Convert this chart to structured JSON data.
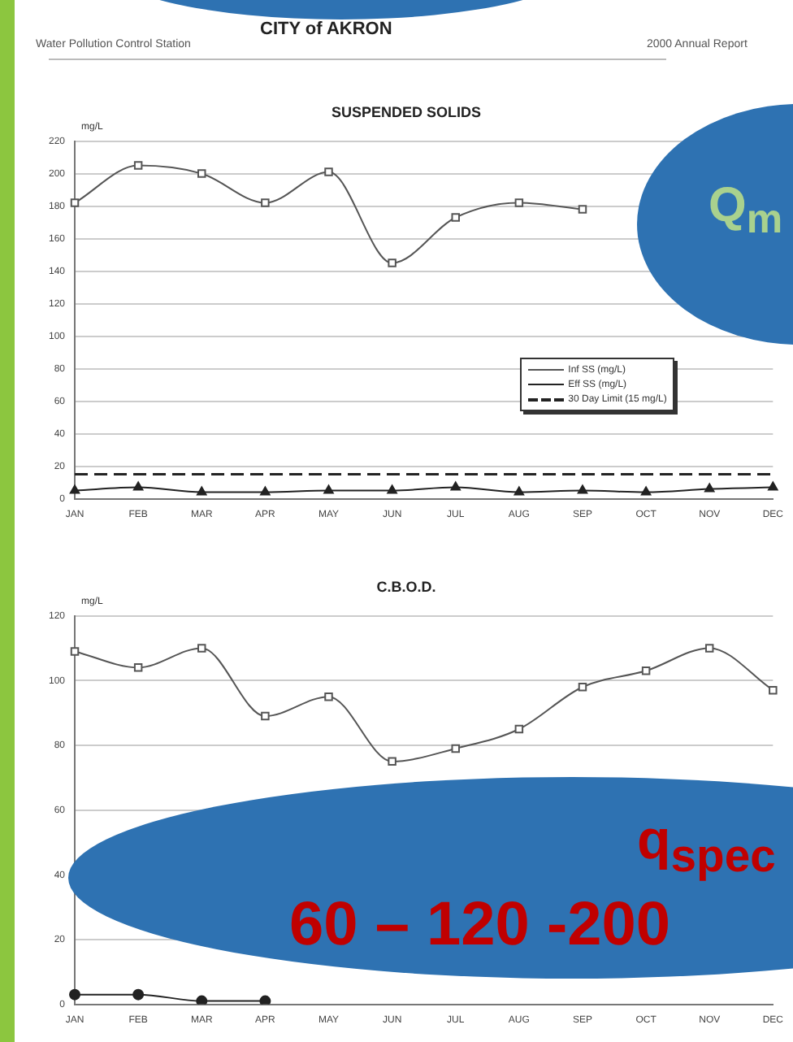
{
  "chart_data": [
    {
      "type": "line",
      "title": "SUSPENDED SOLIDS",
      "ylabel": "mg/L",
      "categories": [
        "JAN",
        "FEB",
        "MAR",
        "APR",
        "MAY",
        "JUN",
        "JUL",
        "AUG",
        "SEP",
        "OCT",
        "NOV",
        "DEC"
      ],
      "series": [
        {
          "name": "Inf SS (mg/L)",
          "color": "#555555",
          "marker": "square",
          "values": [
            182,
            205,
            200,
            182,
            201,
            145,
            173,
            182,
            178,
            null,
            null,
            null
          ]
        },
        {
          "name": "Eff SS (mg/L)",
          "color": "#222222",
          "marker": "triangle",
          "values": [
            5,
            7,
            4,
            4,
            5,
            5,
            7,
            4,
            5,
            4,
            6,
            7
          ]
        }
      ],
      "ref_lines": [
        {
          "axis": "y",
          "value": 15,
          "label": "30 Day Limit (15 mg/L)",
          "color": "#222222",
          "line_style": "dashed"
        }
      ],
      "ylim": [
        0,
        220
      ],
      "yticks": [
        0,
        20,
        40,
        60,
        80,
        100,
        120,
        140,
        160,
        180,
        200,
        220
      ],
      "grid": "y",
      "legend": "right",
      "annotations": [
        "Water Pollution Control Station",
        "CITY of AKRON",
        "2000 Annual Report",
        "Q$_{m}$"
      ]
    },
    {
      "type": "line",
      "title": "C.B.O.D.",
      "ylabel": "mg/L",
      "categories": [
        "JAN",
        "FEB",
        "MAR",
        "APR",
        "MAY",
        "JUN",
        "JUL",
        "AUG",
        "SEP",
        "OCT",
        "NOV",
        "DEC"
      ],
      "series": [
        {
          "color": "#555555",
          "marker": "square",
          "values": [
            109,
            104,
            110,
            89,
            95,
            75,
            79,
            85,
            98,
            103,
            110,
            97
          ]
        },
        {
          "color": "#222222",
          "marker": "circle",
          "values": [
            3,
            3,
            1,
            1,
            null,
            null,
            null,
            null,
            null,
            null,
            null,
            null
          ]
        }
      ],
      "ylim": [
        0,
        120
      ],
      "yticks": [
        0,
        20,
        40,
        60,
        80,
        100,
        120
      ],
      "grid": "y",
      "annotations": [
        "q$_{spec}$",
        "60 – 120 -200"
      ]
    }
  ]
}
